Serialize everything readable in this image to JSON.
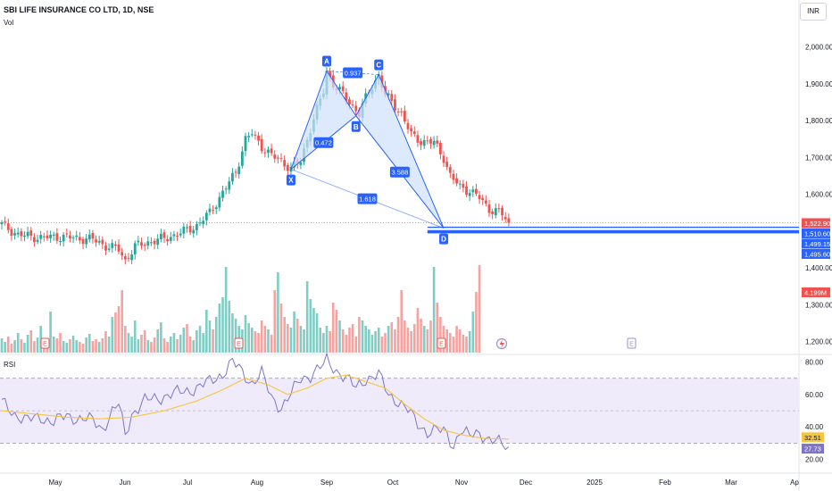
{
  "header": {
    "symbol_title": "SBI LIFE INSURANCE CO LTD, 1D, NSE",
    "volume_label": "Vol",
    "currency_button": "INR",
    "rsi_label": "RSI"
  },
  "colors": {
    "up": "#26a69a",
    "down": "#ef5350",
    "vol_up": "#7fcdc4",
    "vol_down": "#f5a3a1",
    "pattern": "#2962ff",
    "pattern_fill": "#cfe0fb",
    "rsi_line": "#7e75c7",
    "rsi_ma": "#f5c542",
    "rsi_band": "#efebfa",
    "price_tag": "#ef5350",
    "level_tag": "#2962ff"
  },
  "chart_data": [
    {
      "type": "candlestick",
      "title": "SBI LIFE INSURANCE CO LTD, 1D, NSE",
      "x_tick_labels": [
        "May",
        "Jun",
        "Jul",
        "Aug",
        "Sep",
        "Oct",
        "Nov",
        "Dec",
        "2025",
        "Feb",
        "Mar",
        "Ap"
      ],
      "y_tick_labels": [
        "2,000.00",
        "1,900.00",
        "1,800.00",
        "1,700.00",
        "1,600.00",
        "1,400.00",
        "1,300.00",
        "1,200.00"
      ],
      "y_ticks": [
        2000,
        1900,
        1800,
        1700,
        1600,
        1400,
        1300,
        1200
      ],
      "ylim": [
        1170,
        2055
      ],
      "grid": false,
      "price_tags": [
        {
          "label": "1,522.90",
          "value": 1522.9,
          "kind": "last"
        },
        {
          "label": "1,510.60",
          "value": 1510.6,
          "kind": "level"
        },
        {
          "label": "1,499.15",
          "value": 1499.15,
          "kind": "level"
        },
        {
          "label": "1,495.60",
          "value": 1495.6,
          "kind": "level"
        },
        {
          "label": "4.199M",
          "value": 1443,
          "kind": "volume"
        }
      ],
      "last_volume": "4.199M",
      "earnings_markers": [
        "E",
        "E",
        "E",
        "E"
      ],
      "price_anchors": [
        [
          0,
          1518
        ],
        [
          5,
          1490
        ],
        [
          12,
          1482
        ],
        [
          18,
          1485
        ],
        [
          24,
          1480
        ],
        [
          28,
          1478
        ],
        [
          32,
          1460
        ],
        [
          36,
          1450
        ],
        [
          38,
          1420
        ],
        [
          41,
          1458
        ],
        [
          45,
          1470
        ],
        [
          50,
          1480
        ],
        [
          55,
          1495
        ],
        [
          60,
          1515
        ],
        [
          64,
          1550
        ],
        [
          68,
          1605
        ],
        [
          72,
          1660
        ],
        [
          75,
          1750
        ],
        [
          77,
          1765
        ],
        [
          80,
          1730
        ],
        [
          83,
          1705
        ],
        [
          86,
          1690
        ],
        [
          89,
          1670
        ],
        [
          92,
          1690
        ],
        [
          95,
          1780
        ],
        [
          99,
          1880
        ],
        [
          100,
          1935
        ],
        [
          102,
          1900
        ],
        [
          104,
          1880
        ],
        [
          107,
          1850
        ],
        [
          110,
          1820
        ],
        [
          112,
          1860
        ],
        [
          114,
          1895
        ],
        [
          116,
          1925
        ],
        [
          118,
          1870
        ],
        [
          120,
          1850
        ],
        [
          123,
          1820
        ],
        [
          126,
          1760
        ],
        [
          129,
          1745
        ],
        [
          133,
          1740
        ],
        [
          136,
          1700
        ],
        [
          138,
          1650
        ],
        [
          141,
          1620
        ],
        [
          144,
          1610
        ],
        [
          147,
          1590
        ],
        [
          150,
          1560
        ],
        [
          152,
          1555
        ],
        [
          154,
          1545
        ],
        [
          156,
          1522.9
        ]
      ],
      "volume_profile": [
        16,
        12,
        18,
        10,
        14,
        22,
        15,
        11,
        20,
        25,
        13,
        17,
        30,
        14,
        12,
        46,
        18,
        16,
        22,
        13,
        11,
        15,
        19,
        14,
        12,
        10,
        17,
        21,
        13,
        15,
        12,
        16,
        24,
        18,
        40,
        45,
        52,
        70,
        30,
        22,
        18,
        36,
        15,
        20,
        25,
        14,
        12,
        17,
        26,
        34,
        16,
        12,
        18,
        22,
        15,
        20,
        28,
        32,
        18,
        14,
        25,
        30,
        22,
        48,
        36,
        26,
        40,
        55,
        62,
        96,
        58,
        44,
        38,
        30,
        26,
        42,
        33,
        28,
        24,
        22,
        36,
        30,
        26,
        20,
        70,
        90,
        55,
        40,
        32,
        28,
        46,
        38,
        30,
        26,
        80,
        60,
        50,
        44,
        28,
        22,
        30,
        24,
        56,
        48,
        36,
        26,
        20,
        28,
        32,
        18,
        40,
        36,
        30,
        26,
        20,
        24,
        28,
        18,
        22,
        30,
        34,
        26,
        40,
        70,
        36,
        28,
        24,
        32,
        50,
        38,
        30,
        26,
        36,
        96,
        56,
        40,
        30,
        26,
        22,
        18,
        30,
        26,
        20,
        18,
        24,
        46,
        68,
        98
      ],
      "harmonic_pattern": {
        "points": [
          {
            "label": "X",
            "bar": 89,
            "value": 1668
          },
          {
            "label": "A",
            "bar": 100,
            "value": 1935
          },
          {
            "label": "B",
            "bar": 109,
            "value": 1813
          },
          {
            "label": "C",
            "bar": 116,
            "value": 1925
          },
          {
            "label": "D",
            "bar": 136,
            "value": 1508
          }
        ],
        "ratios": [
          "0.472",
          "0.937",
          "3.588",
          "1.618"
        ]
      },
      "levels": [
        1522.9,
        1510.6,
        1499.15,
        1495.6
      ]
    },
    {
      "type": "line",
      "title": "RSI",
      "y_tick_labels": [
        "80.00",
        "60.00",
        "40.00",
        "20.00"
      ],
      "y_ticks": [
        80,
        60,
        40,
        20
      ],
      "ylim": [
        17,
        82
      ],
      "band": [
        30,
        70
      ],
      "midline": 50,
      "value_tags": [
        {
          "label": "32.51",
          "value": 32.51,
          "kind": "ma"
        },
        {
          "label": "27.73",
          "value": 27.73,
          "kind": "rsi"
        }
      ],
      "series": [
        {
          "name": "",
          "anchors": [
            [
              0,
              55
            ],
            [
              4,
              48
            ],
            [
              8,
              44
            ],
            [
              12,
              46
            ],
            [
              16,
              43
            ],
            [
              20,
              47
            ],
            [
              24,
              45
            ],
            [
              28,
              44
            ],
            [
              31,
              39
            ],
            [
              34,
              49
            ],
            [
              36,
              54
            ],
            [
              38,
              35
            ],
            [
              40,
              48
            ],
            [
              44,
              56
            ],
            [
              48,
              58
            ],
            [
              52,
              60
            ],
            [
              56,
              62
            ],
            [
              60,
              64
            ],
            [
              64,
              68
            ],
            [
              68,
              73
            ],
            [
              71,
              80
            ],
            [
              74,
              74
            ],
            [
              77,
              67
            ],
            [
              80,
              73
            ],
            [
              83,
              58
            ],
            [
              86,
              52
            ],
            [
              89,
              60
            ],
            [
              92,
              70
            ],
            [
              95,
              72
            ],
            [
              99,
              78
            ],
            [
              100,
              81
            ],
            [
              103,
              75
            ],
            [
              106,
              70
            ],
            [
              109,
              64
            ],
            [
              112,
              70
            ],
            [
              116,
              72
            ],
            [
              119,
              60
            ],
            [
              122,
              56
            ],
            [
              125,
              50
            ],
            [
              128,
              42
            ],
            [
              131,
              37
            ],
            [
              134,
              38
            ],
            [
              137,
              36
            ],
            [
              139,
              28
            ],
            [
              141,
              38
            ],
            [
              144,
              34
            ],
            [
              147,
              37
            ],
            [
              150,
              32
            ],
            [
              153,
              30
            ],
            [
              156,
              27.73
            ]
          ]
        },
        {
          "name": "",
          "anchors": [
            [
              0,
              50
            ],
            [
              10,
              48
            ],
            [
              20,
              46
            ],
            [
              30,
              45
            ],
            [
              40,
              46
            ],
            [
              50,
              50
            ],
            [
              60,
              56
            ],
            [
              68,
              63
            ],
            [
              75,
              70
            ],
            [
              82,
              66
            ],
            [
              88,
              60
            ],
            [
              94,
              64
            ],
            [
              100,
              70
            ],
            [
              106,
              72
            ],
            [
              112,
              68
            ],
            [
              118,
              64
            ],
            [
              124,
              54
            ],
            [
              130,
              45
            ],
            [
              136,
              38
            ],
            [
              142,
              35
            ],
            [
              148,
              33
            ],
            [
              156,
              32.51
            ]
          ]
        }
      ]
    }
  ]
}
